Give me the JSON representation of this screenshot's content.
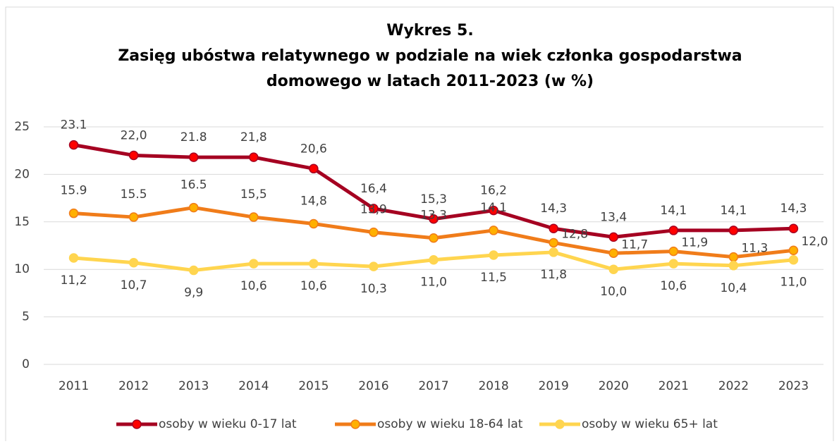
{
  "chart_data": {
    "type": "line",
    "title": [
      "Wykres 5.",
      "Zasięg ubóstwa relatywnego w podziale na wiek członka gospodarstwa",
      "domowego w latach 2011-2023  (w %)"
    ],
    "categories": [
      "2011",
      "2012",
      "2013",
      "2014",
      "2015",
      "2016",
      "2017",
      "2018",
      "2019",
      "2020",
      "2021",
      "2022",
      "2023"
    ],
    "series": [
      {
        "name": "osoby w wieku 0-17 lat",
        "color": "#a50021",
        "marker_color": "#ff0000",
        "values": [
          23.1,
          22.0,
          21.8,
          21.8,
          20.6,
          16.4,
          15.3,
          16.2,
          14.3,
          13.4,
          14.1,
          14.1,
          14.3
        ],
        "value_labels": [
          "23.1",
          "22,0",
          "21.8",
          "21,8",
          "20,6",
          "16,4",
          "15,3",
          "16,2",
          "14,3",
          "13,4",
          "14,1",
          "14,1",
          "14,3"
        ]
      },
      {
        "name": "osoby w wieku 18-64 lat",
        "color": "#f07c1a",
        "marker_color": "#ffb000",
        "values": [
          15.9,
          15.5,
          16.5,
          15.5,
          14.8,
          13.9,
          13.3,
          14.1,
          12.8,
          11.7,
          11.9,
          11.3,
          12.0
        ],
        "value_labels": [
          "15.9",
          "15.5",
          "16.5",
          "15,5",
          "14,8",
          "13,9",
          "13,3",
          "14,1",
          "12,8",
          "11,7",
          "11,9",
          "11,3",
          "12,0"
        ]
      },
      {
        "name": "osoby w wieku 65+ lat",
        "color": "#ffd54f",
        "marker_color": "#ffd54f",
        "values": [
          11.2,
          10.7,
          9.9,
          10.6,
          10.6,
          10.3,
          11.0,
          11.5,
          11.8,
          10.0,
          10.6,
          10.4,
          11.0
        ],
        "value_labels": [
          "11,2",
          "10,7",
          "9,9",
          "10,6",
          "10,6",
          "10,3",
          "11,0",
          "11,5",
          "11,8",
          "10,0",
          "10,6",
          "10,4",
          "11,0"
        ]
      }
    ],
    "ylim": [
      0,
      25
    ],
    "yticks": [
      0,
      5,
      10,
      15,
      20,
      25
    ],
    "grid": true,
    "legend": "bottom"
  }
}
